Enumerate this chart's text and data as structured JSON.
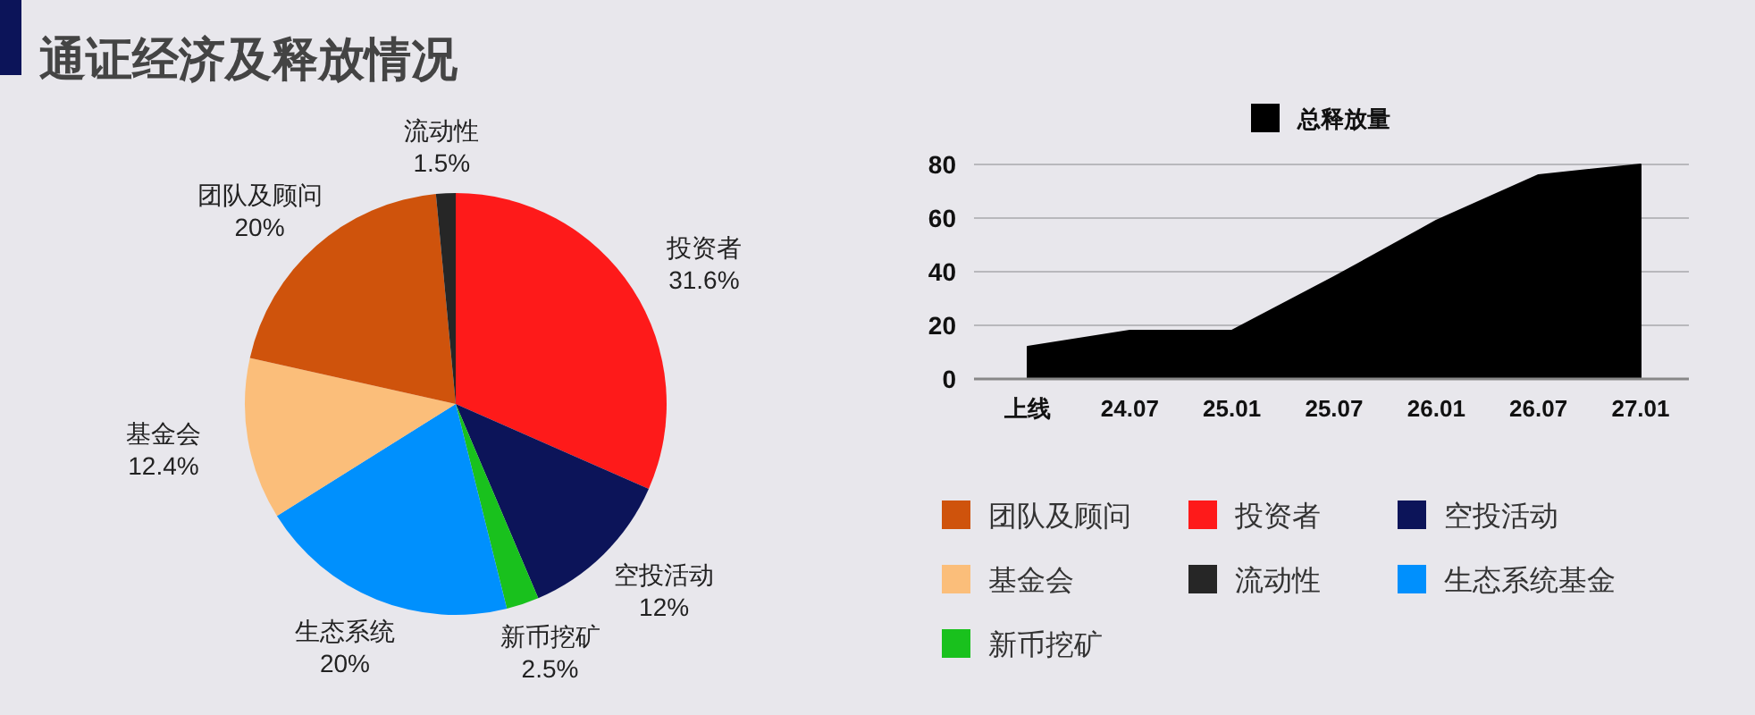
{
  "chart_data": [
    {
      "type": "pie",
      "title": "通证经济及释放情况",
      "categories": [
        "投资者",
        "空投活动",
        "新币挖矿",
        "生态系统",
        "基金会",
        "团队及顾问",
        "流动性"
      ],
      "values": [
        31.6,
        12,
        2.5,
        20,
        12.4,
        20,
        1.5
      ],
      "value_labels": [
        "31.6%",
        "12%",
        "2.5%",
        "20%",
        "12.4%",
        "20%",
        "1.5%"
      ],
      "colors": [
        "#fe1a1a",
        "#0c1459",
        "#19c11d",
        "#0090fd",
        "#fbbe7a",
        "#cf530c",
        "#262626"
      ]
    },
    {
      "type": "area",
      "categories": [
        "上线",
        "24.07",
        "25.01",
        "25.07",
        "26.01",
        "26.07",
        "27.01"
      ],
      "series": [
        {
          "name": "总释放量",
          "color": "#000000",
          "values": [
            12,
            18,
            18,
            38,
            59,
            76,
            80
          ]
        }
      ],
      "ylim": [
        0,
        80
      ],
      "yticks": [
        0,
        20,
        40,
        60,
        80
      ],
      "grid": "y",
      "legend": "top"
    },
    {
      "type": "other",
      "categories": [
        "团队及顾问",
        "投资者",
        "空投活动",
        "基金会",
        "流动性",
        "生态系统基金",
        "新币挖矿"
      ],
      "colors": [
        "#cf530c",
        "#fe1a1a",
        "#0c1459",
        "#fbbe7a",
        "#262626",
        "#0090fd",
        "#19c11d"
      ]
    }
  ]
}
